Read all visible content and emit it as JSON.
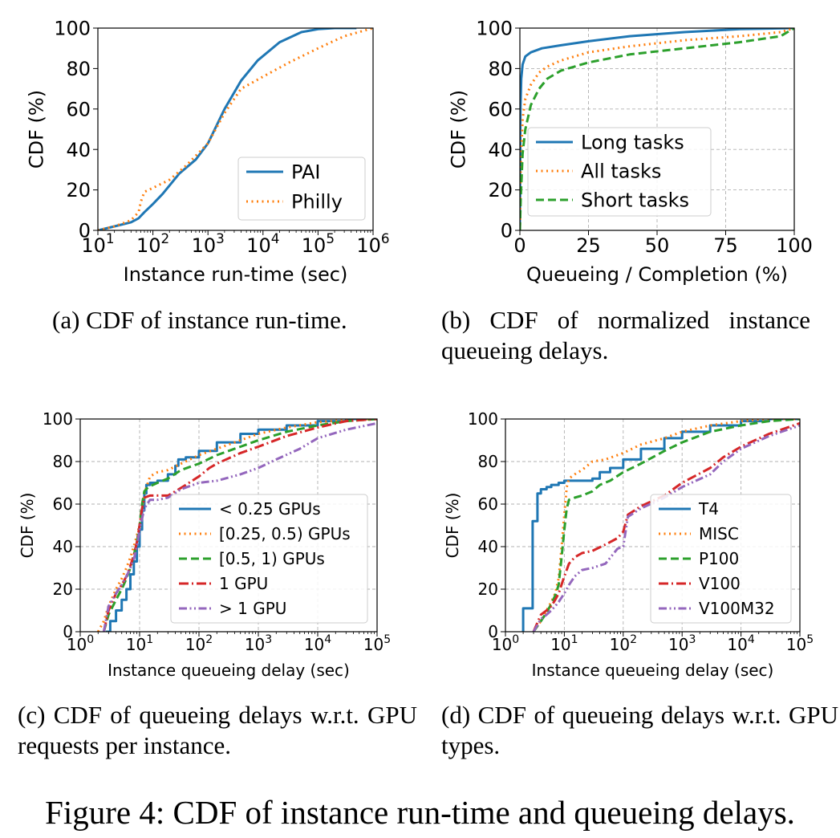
{
  "figure_caption": "Figure 4: CDF of instance run-time and queueing delays.",
  "panels": [
    {
      "caption": "(a) CDF of instance run-time."
    },
    {
      "caption": "(b) CDF of normalized instance queueing delays."
    },
    {
      "caption": "(c) CDF of queueing delays w.r.t. GPU requests per instance."
    },
    {
      "caption": "(d) CDF of queueing delays w.r.t. GPU types."
    }
  ],
  "chart_data": [
    {
      "type": "line",
      "xscale": "log",
      "xlim": [
        10,
        1000000
      ],
      "ylim": [
        0,
        100
      ],
      "xlabel": "Instance run-time (sec)",
      "ylabel": "CDF (%)",
      "yticks": [
        0,
        20,
        40,
        60,
        80,
        100
      ],
      "xticks": [
        {
          "base": "10",
          "exp": "1"
        },
        {
          "base": "10",
          "exp": "2"
        },
        {
          "base": "10",
          "exp": "3"
        },
        {
          "base": "10",
          "exp": "4"
        },
        {
          "base": "10",
          "exp": "5"
        },
        {
          "base": "10",
          "exp": "6"
        }
      ],
      "grid": false,
      "legend_position": "lower-right",
      "series": [
        {
          "name": "PAI",
          "color": "#1f77b4",
          "style": "solid",
          "x": [
            10,
            20,
            40,
            55,
            70,
            100,
            150,
            300,
            600,
            1000,
            2000,
            4000,
            8000,
            20000,
            50000,
            100000,
            200000,
            500000
          ],
          "y": [
            0,
            2,
            4,
            6,
            9,
            13,
            18,
            28,
            35,
            43,
            60,
            74,
            84,
            93,
            98,
            99.5,
            100,
            100
          ]
        },
        {
          "name": "Philly",
          "color": "#ff7f0e",
          "style": "dotted",
          "x": [
            10,
            20,
            40,
            55,
            60,
            70,
            100,
            200,
            400,
            1000,
            2000,
            4000,
            10000,
            30000,
            100000,
            300000,
            1000000
          ],
          "y": [
            0,
            2,
            5,
            9,
            14,
            19,
            21,
            25,
            32,
            43,
            58,
            70,
            76,
            83,
            90,
            96,
            100
          ]
        }
      ]
    },
    {
      "type": "line",
      "xscale": "linear",
      "xlim": [
        0,
        100
      ],
      "ylim": [
        0,
        100
      ],
      "xlabel": "Queueing / Completion (%)",
      "ylabel": "CDF (%)",
      "yticks": [
        0,
        20,
        40,
        60,
        80,
        100
      ],
      "xticks": [
        {
          "base": "0"
        },
        {
          "base": "25"
        },
        {
          "base": "50"
        },
        {
          "base": "75"
        },
        {
          "base": "100"
        }
      ],
      "grid": true,
      "legend_position": "center",
      "series": [
        {
          "name": "Long tasks",
          "color": "#1f77b4",
          "style": "solid",
          "x": [
            0,
            0.2,
            0.5,
            1,
            2,
            4,
            8,
            15,
            25,
            40,
            60,
            80,
            100
          ],
          "y": [
            0,
            60,
            75,
            82,
            86,
            88,
            90,
            91.5,
            93.5,
            96,
            98,
            99.5,
            100
          ]
        },
        {
          "name": "All tasks",
          "color": "#ff7f0e",
          "style": "dotted",
          "x": [
            0,
            0.3,
            1,
            2,
            4,
            7,
            10,
            15,
            25,
            40,
            60,
            80,
            95,
            100
          ],
          "y": [
            0,
            30,
            55,
            65,
            72,
            78,
            81,
            84,
            88,
            91,
            94,
            96,
            98,
            100
          ]
        },
        {
          "name": "Short tasks",
          "color": "#2ca02c",
          "style": "dashed",
          "x": [
            0,
            0.3,
            1,
            2,
            4,
            7,
            10,
            15,
            25,
            40,
            60,
            80,
            95,
            100
          ],
          "y": [
            0,
            15,
            38,
            50,
            62,
            70,
            75,
            79,
            83,
            87,
            90,
            93,
            96,
            100
          ]
        }
      ]
    },
    {
      "type": "line",
      "xscale": "log",
      "xlim": [
        1,
        100000
      ],
      "ylim": [
        0,
        100
      ],
      "xlabel": "Instance queueing delay (sec)",
      "ylabel": "CDF (%)",
      "yticks": [
        0,
        20,
        40,
        60,
        80,
        100
      ],
      "xticks": [
        {
          "base": "10",
          "exp": "0"
        },
        {
          "base": "10",
          "exp": "1"
        },
        {
          "base": "10",
          "exp": "2"
        },
        {
          "base": "10",
          "exp": "3"
        },
        {
          "base": "10",
          "exp": "4"
        },
        {
          "base": "10",
          "exp": "5"
        }
      ],
      "grid": true,
      "legend_position": "lower-right",
      "series": [
        {
          "name": "< 0.25 GPUs",
          "color": "#1f77b4",
          "style": "solid",
          "step": true,
          "x": [
            2.7,
            3.2,
            4,
            5,
            6,
            7,
            8,
            9,
            10,
            11,
            12,
            13,
            15,
            20,
            30,
            40,
            45,
            60,
            100,
            200,
            500,
            1000,
            3000,
            10000,
            30000,
            100000
          ],
          "y": [
            0,
            5,
            10,
            15,
            20,
            27,
            33,
            40,
            48,
            57,
            65,
            69,
            70,
            71,
            74,
            78,
            81,
            82,
            85,
            89,
            93,
            95,
            97,
            99,
            100,
            100
          ]
        },
        {
          "name": "[0.25, 0.5) GPUs",
          "color": "#ff7f0e",
          "style": "dotted",
          "x": [
            2,
            2.5,
            3,
            4,
            5,
            6,
            7,
            8,
            10,
            12,
            15,
            20,
            30,
            50,
            100,
            200,
            500,
            1000,
            3000,
            10000,
            30000,
            100000
          ],
          "y": [
            0,
            5,
            12,
            20,
            25,
            30,
            35,
            40,
            50,
            65,
            73,
            75,
            76,
            79,
            83,
            86,
            90,
            93,
            96,
            98.5,
            99.5,
            100
          ]
        },
        {
          "name": "[0.5, 1) GPUs",
          "color": "#2ca02c",
          "style": "dashed",
          "x": [
            2.5,
            3,
            4,
            5,
            6,
            7,
            8,
            9,
            10,
            11,
            12,
            14,
            20,
            30,
            50,
            100,
            200,
            500,
            1000,
            3000,
            10000,
            30000,
            100000
          ],
          "y": [
            0,
            8,
            15,
            20,
            25,
            30,
            36,
            42,
            50,
            60,
            66,
            68,
            70,
            72,
            76,
            79,
            83,
            87,
            90,
            94,
            97,
            99,
            100
          ]
        },
        {
          "name": "1 GPU",
          "color": "#d62728",
          "style": "dashdot",
          "x": [
            2.5,
            3,
            4,
            5,
            6,
            7,
            8,
            9,
            10,
            11,
            12,
            15,
            20,
            30,
            40,
            60,
            100,
            150,
            200,
            500,
            1000,
            3000,
            10000,
            30000,
            100000
          ],
          "y": [
            0,
            10,
            18,
            22,
            26,
            31,
            36,
            42,
            50,
            58,
            63,
            64,
            64,
            64,
            66,
            69,
            73,
            77,
            79,
            84,
            87,
            92,
            96,
            99,
            100
          ]
        },
        {
          "name": "> 1 GPU",
          "color": "#9467bd",
          "style": "dashdotdot",
          "x": [
            2.5,
            3,
            4,
            5,
            6,
            7,
            8,
            9,
            10,
            12,
            15,
            20,
            30,
            50,
            100,
            200,
            500,
            1000,
            2000,
            5000,
            10000,
            30000,
            100000
          ],
          "y": [
            0,
            12,
            18,
            22,
            26,
            30,
            34,
            40,
            48,
            58,
            62,
            62,
            63,
            67,
            70,
            71,
            74,
            77,
            81,
            86,
            91,
            95,
            98
          ]
        }
      ]
    },
    {
      "type": "line",
      "xscale": "log",
      "xlim": [
        1,
        100000
      ],
      "ylim": [
        0,
        100
      ],
      "xlabel": "Instance queueing delay (sec)",
      "ylabel": "CDF (%)",
      "yticks": [
        0,
        20,
        40,
        60,
        80,
        100
      ],
      "xticks": [
        {
          "base": "10",
          "exp": "0"
        },
        {
          "base": "10",
          "exp": "1"
        },
        {
          "base": "10",
          "exp": "2"
        },
        {
          "base": "10",
          "exp": "3"
        },
        {
          "base": "10",
          "exp": "4"
        },
        {
          "base": "10",
          "exp": "5"
        }
      ],
      "grid": true,
      "legend_position": "lower-right",
      "series": [
        {
          "name": "T4",
          "color": "#1f77b4",
          "style": "solid",
          "step": true,
          "x": [
            1.9,
            2,
            2.9,
            3.5,
            4,
            5,
            6,
            8,
            10,
            20,
            30,
            40,
            60,
            100,
            200,
            500,
            1000,
            3000,
            10000,
            30000,
            100000
          ],
          "y": [
            0,
            11,
            52,
            65,
            67,
            68,
            69,
            70,
            71,
            71,
            72,
            75,
            77,
            81,
            86,
            91,
            94,
            97,
            99,
            100,
            100
          ]
        },
        {
          "name": "MISC",
          "color": "#ff7f0e",
          "style": "dotted",
          "x": [
            3,
            4,
            5,
            6,
            7,
            8,
            9,
            10,
            11,
            12,
            15,
            20,
            30,
            50,
            100,
            200,
            500,
            1000,
            3000,
            10000,
            30000,
            100000
          ],
          "y": [
            0,
            5,
            10,
            14,
            18,
            25,
            40,
            55,
            68,
            72,
            74,
            76,
            80,
            81,
            84,
            88,
            91,
            94,
            97,
            99,
            100,
            100
          ]
        },
        {
          "name": "P100",
          "color": "#2ca02c",
          "style": "dashed",
          "x": [
            3,
            4,
            5,
            6,
            7,
            8,
            9,
            10,
            11,
            12,
            15,
            20,
            30,
            40,
            60,
            100,
            200,
            500,
            1000,
            3000,
            10000,
            30000,
            100000
          ],
          "y": [
            0,
            5,
            9,
            13,
            17,
            22,
            35,
            48,
            58,
            62,
            63,
            64,
            66,
            69,
            71,
            75,
            79,
            85,
            89,
            94,
            97,
            99,
            100
          ]
        },
        {
          "name": "V100",
          "color": "#d62728",
          "style": "dashdot",
          "x": [
            3,
            4,
            5,
            6,
            7,
            8,
            10,
            12,
            15,
            20,
            30,
            50,
            80,
            100,
            120,
            200,
            500,
            1000,
            3000,
            5000,
            10000,
            30000,
            100000
          ],
          "y": [
            0,
            8,
            10,
            12,
            15,
            18,
            26,
            32,
            35,
            37,
            38,
            41,
            44,
            47,
            55,
            59,
            64,
            70,
            77,
            82,
            87,
            93,
            98
          ]
        },
        {
          "name": "V100M32",
          "color": "#9467bd",
          "style": "dashdotdot",
          "x": [
            3,
            4,
            5,
            6,
            7,
            8,
            10,
            12,
            15,
            20,
            30,
            50,
            80,
            100,
            120,
            200,
            500,
            1000,
            3000,
            5000,
            10000,
            30000,
            100000
          ],
          "y": [
            0,
            6,
            8,
            10,
            12,
            14,
            18,
            22,
            26,
            29,
            30,
            32,
            39,
            40,
            54,
            58,
            63,
            68,
            74,
            80,
            86,
            92,
            97
          ]
        }
      ]
    }
  ]
}
